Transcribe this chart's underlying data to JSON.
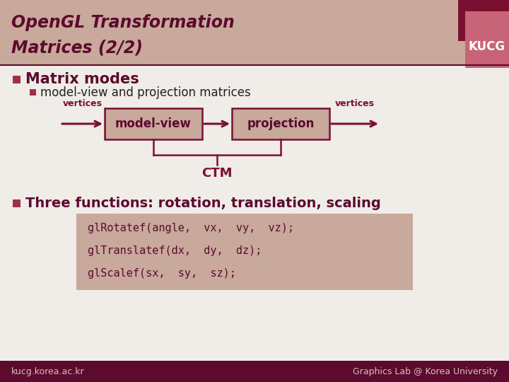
{
  "title_line1": "OpenGL Transformation",
  "title_line2": "Matrices (2/2)",
  "title_bg_color": "#c8a99b",
  "title_text_color": "#5c0a2e",
  "kucg_bg_color": "#c86478",
  "kucg_dark_color": "#7a1030",
  "kucg_text": "KUCG",
  "bullet_color": "#a0304a",
  "main_bullet1": "Matrix modes",
  "sub_bullet1": "model-view and projection matrices",
  "main_bullet2": "Three functions: rotation, translation, scaling",
  "box_fill": "#c8a99b",
  "box_edge": "#7a1030",
  "arrow_color": "#7a1030",
  "box1_label": "model-view",
  "box2_label": "projection",
  "ctm_label": "CTM",
  "vertices_label": "vertices",
  "code_bg": "#c8a99b",
  "code_text_color": "#5c0a2e",
  "code_lines": [
    "glRotatef(angle,  vx,  vy,  vz);",
    "glTranslatef(dx,  dy,  dz);",
    "glScalef(sx,  sy,  sz);"
  ],
  "footer_bg": "#5c0a2e",
  "footer_left": "kucg.korea.ac.kr",
  "footer_right": "Graphics Lab @ Korea University",
  "footer_text_color": "#d8c0b8",
  "bg_color": "#f0ece8"
}
